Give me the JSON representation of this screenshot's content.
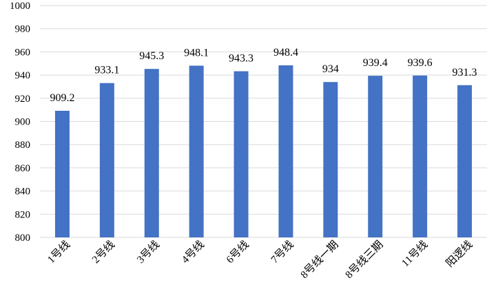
{
  "chart_data": {
    "type": "bar",
    "categories": [
      "1号线",
      "2号线",
      "3号线",
      "4号线",
      "6号线",
      "7号线",
      "8号线一期",
      "8号线三期",
      "11号线",
      "阳逻线"
    ],
    "values": [
      909.2,
      933.1,
      945.3,
      948.1,
      943.3,
      948.4,
      934,
      939.4,
      939.6,
      931.3
    ],
    "value_labels": [
      "909.2",
      "933.1",
      "945.3",
      "948.1",
      "943.3",
      "948.4",
      "934",
      "939.4",
      "939.6",
      "931.3"
    ],
    "ylim": [
      800,
      1000
    ],
    "yticks": [
      800,
      820,
      840,
      860,
      880,
      900,
      920,
      940,
      960,
      980,
      1000
    ],
    "grid": true,
    "legend": "none",
    "bar_color": "#4472c4",
    "grid_color": "#d9d9d9",
    "title": "",
    "xlabel": "",
    "ylabel": ""
  }
}
